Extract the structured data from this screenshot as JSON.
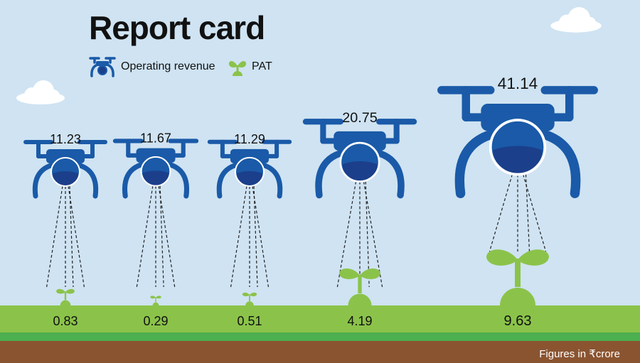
{
  "title": "Report card",
  "legend": {
    "revenue_label": "Operating revenue",
    "pat_label": "PAT"
  },
  "footnote": "Figures in ₹crore",
  "colors": {
    "sky": "#cfe3f2",
    "drone_blue": "#1a5aa8",
    "lens_dark": "#1b3f8b",
    "grass": "#8bc34a",
    "grass_dark": "#4caf50",
    "soil": "#8a5431",
    "sprout": "#8bc34a"
  },
  "chart_data": {
    "type": "bar",
    "categories": [
      "",
      "",
      "",
      "",
      ""
    ],
    "series": [
      {
        "name": "Operating revenue",
        "values": [
          11.23,
          11.67,
          11.29,
          20.75,
          41.14
        ]
      },
      {
        "name": "PAT",
        "values": [
          0.83,
          0.29,
          0.51,
          4.19,
          9.63
        ]
      }
    ],
    "unit": "₹crore"
  }
}
